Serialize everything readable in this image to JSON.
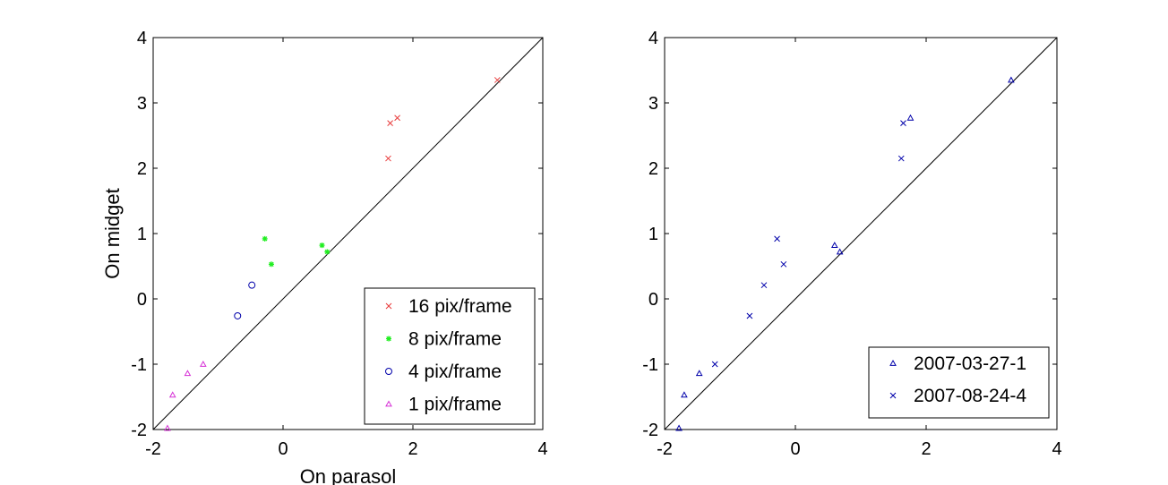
{
  "chart_data": [
    {
      "type": "scatter",
      "xlabel": "On parasol",
      "ylabel": "On midget",
      "xlim": [
        -2,
        4
      ],
      "ylim": [
        -2,
        4
      ],
      "xticks": [
        "-2",
        "0",
        "2",
        "4"
      ],
      "yticks": [
        "-2",
        "-1",
        "0",
        "1",
        "2",
        "3",
        "4"
      ],
      "reference_line": "y = x",
      "legend_position": "bottom-right",
      "series": [
        {
          "name": "16 pix/frame",
          "marker": "x",
          "color": "#e83a3a",
          "x": [
            1.62,
            1.65,
            1.76,
            3.3
          ],
          "y": [
            2.15,
            2.69,
            2.77,
            3.35
          ]
        },
        {
          "name": "8 pix/frame",
          "marker": "*",
          "color": "#22ee22",
          "x": [
            -0.28,
            -0.18,
            0.6,
            0.68
          ],
          "y": [
            0.92,
            0.53,
            0.82,
            0.72
          ]
        },
        {
          "name": "4 pix/frame",
          "marker": "o",
          "color": "#0000aa",
          "x": [
            -0.7,
            -0.48
          ],
          "y": [
            -0.26,
            0.21
          ]
        },
        {
          "name": "1 pix/frame",
          "marker": "triangle",
          "color": "#d630d6",
          "x": [
            -1.78,
            -1.7,
            -1.47,
            -1.23
          ],
          "y": [
            -1.98,
            -1.47,
            -1.14,
            -1.0
          ]
        }
      ]
    },
    {
      "type": "scatter",
      "xlabel": "",
      "ylabel": "",
      "xlim": [
        -2,
        4
      ],
      "ylim": [
        -2,
        4
      ],
      "xticks": [
        "-2",
        "0",
        "2",
        "4"
      ],
      "yticks": [
        "-2",
        "-1",
        "0",
        "1",
        "2",
        "3",
        "4"
      ],
      "reference_line": "y = x",
      "legend_position": "bottom-right",
      "series": [
        {
          "name": "2007-03-27-1",
          "marker": "triangle",
          "color": "#0000aa",
          "x": [
            -1.78,
            -1.7,
            -1.47,
            0.6,
            0.68,
            1.76,
            3.3
          ],
          "y": [
            -1.98,
            -1.47,
            -1.14,
            0.82,
            0.72,
            2.77,
            3.35
          ]
        },
        {
          "name": "2007-08-24-4",
          "marker": "x",
          "color": "#0000aa",
          "x": [
            -1.23,
            -0.7,
            -0.48,
            -0.28,
            -0.18,
            1.62,
            1.65
          ],
          "y": [
            -1.0,
            -0.26,
            0.21,
            0.92,
            0.53,
            2.15,
            2.69
          ]
        }
      ]
    }
  ]
}
